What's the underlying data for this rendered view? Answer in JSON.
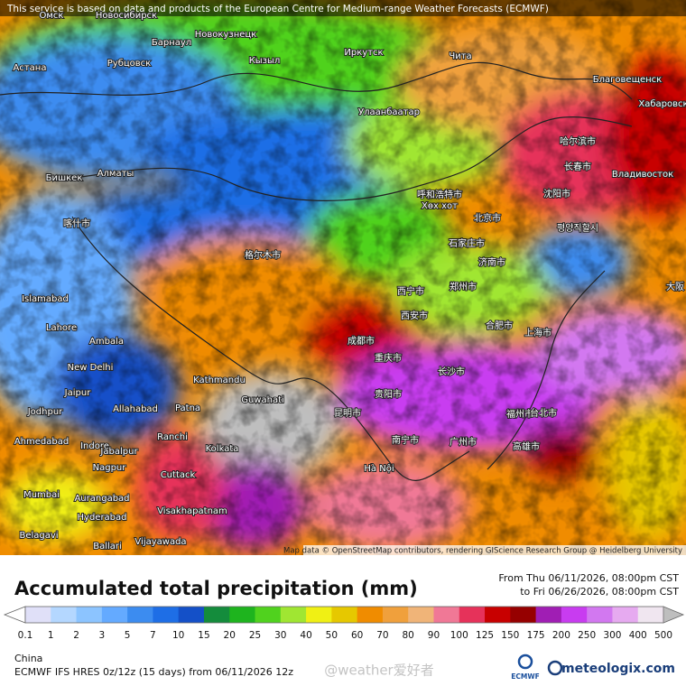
{
  "header": {
    "disclaimer": "This service is based on data and products of the European Centre for Medium-range Weather Forecasts (ECMWF)"
  },
  "map": {
    "attribution": "Map data © OpenStreetMap contributors, rendering GIScience Research Group @ Heidelberg University",
    "labels": [
      "Омск",
      "Новосибирск",
      "Барнаул",
      "Новокузнецк",
      "Астана",
      "Рубцовск",
      "Кызыл",
      "Иркутск",
      "Чита",
      "Благовещенск",
      "Хабаровск",
      "Улаанбаатар",
      "哈尔滨市",
      "长春市",
      "Владивосток",
      "Бишкек",
      "Алматы",
      "呼和浩特市",
      "Хөх хот",
      "沈阳市",
      "北京市",
      "평양직할시",
      "喀什市",
      "石家庄市",
      "格尔木市",
      "济南市",
      "Islamabad",
      "西宁市",
      "郑州市",
      "大阪",
      "Lahore",
      "西安市",
      "合肥市",
      "成都市",
      "上海市",
      "Ambala",
      "New Delhi",
      "Kathmandu",
      "重庆市",
      "长沙市",
      "Jaipur",
      "Guwahati",
      "Jodhpur",
      "Allahabad",
      "Patna",
      "贵阳市",
      "昆明市",
      "福州市",
      "台北市",
      "南宁市",
      "广州市",
      "Ahmedabad",
      "Indore",
      "Ranchi",
      "Kolkata",
      "Jabalpur",
      "高雄市",
      "Nagpur",
      "Hà Nội",
      "Cuttack",
      "Mumbai",
      "Aurangabad",
      "Hyderabad",
      "Visakhapatnam",
      "Belagavi",
      "Vijayawada",
      "Ballari"
    ]
  },
  "footer": {
    "title": "Accumulated total precipitation (mm)",
    "period_from": "From Thu 06/11/2026, 08:00pm CST",
    "period_to": "to Fri 06/26/2026, 08:00pm CST",
    "region": "China",
    "model": "ECMWF IFS HRES 0z/12z (15 days) from 06/11/2026 12z",
    "watermark": "@weather爱好者",
    "ecmwf_logo": "ECMWF",
    "brand": "meteologix.com"
  },
  "legend": {
    "ticks": [
      0.1,
      1,
      2,
      3,
      5,
      7,
      10,
      15,
      20,
      25,
      30,
      40,
      50,
      60,
      70,
      80,
      90,
      100,
      125,
      150,
      175,
      200,
      250,
      300,
      400,
      500
    ],
    "colors": [
      "#e0e0f8",
      "#b4d7ff",
      "#8cc4ff",
      "#64aaff",
      "#3c8cf0",
      "#1e6ee6",
      "#1450c8",
      "#148c3c",
      "#1eb41e",
      "#50d21e",
      "#a0e632",
      "#f0f014",
      "#e6c800",
      "#f08c00",
      "#f0a03c",
      "#f0b478",
      "#f07896",
      "#e6325a",
      "#c80000",
      "#960000",
      "#a01eb4",
      "#c83cf0",
      "#d278f0",
      "#e6aaf0",
      "#f0e6f0"
    ],
    "under_color": "#ffffff",
    "over_color": "#bebebe"
  }
}
